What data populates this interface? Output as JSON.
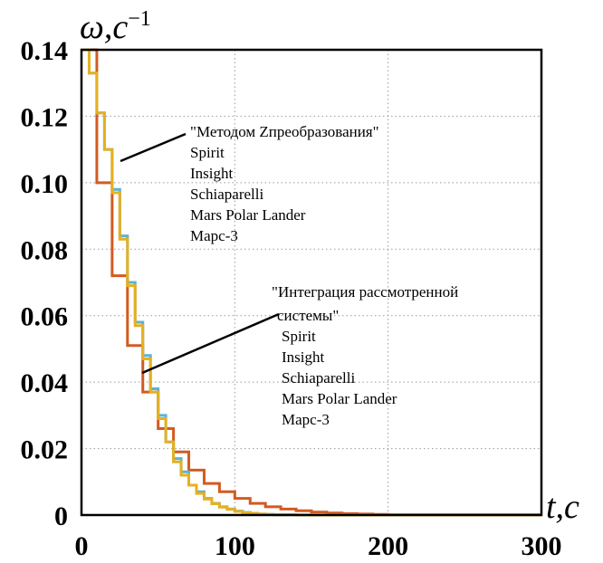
{
  "chart_data": {
    "type": "line",
    "step": true,
    "xlabel": "t,c",
    "ylabel": "ω,c⁻¹",
    "xlim": [
      0,
      300
    ],
    "ylim": [
      0,
      0.14
    ],
    "grid": true,
    "x_ticks": [
      "0",
      "100",
      "200",
      "300"
    ],
    "y_ticks": [
      "0",
      "0.02",
      "0.04",
      "0.06",
      "0.08",
      "0.10",
      "0.12",
      "0.14"
    ],
    "series": [
      {
        "color": "#d25b22",
        "x": [
          0,
          10,
          20,
          30,
          40,
          50,
          60,
          70,
          80,
          90,
          100,
          110,
          120,
          130,
          140,
          150,
          160,
          170,
          180,
          190,
          200,
          210,
          220,
          230,
          240,
          250,
          260,
          270,
          280,
          290,
          300
        ],
        "values": [
          0.14,
          0.1,
          0.072,
          0.051,
          0.037,
          0.026,
          0.019,
          0.0135,
          0.0095,
          0.007,
          0.005,
          0.0035,
          0.0025,
          0.0018,
          0.0013,
          0.0009,
          0.0006,
          0.0004,
          0.0003,
          0.0002,
          0.0001,
          0.0001,
          0.0001,
          0.0001,
          0.0001,
          0.0001,
          0.0001,
          0.0001,
          0.0001,
          0.0001,
          0.0001
        ]
      },
      {
        "color": "#5ab4d6",
        "x": [
          0,
          5,
          10,
          15,
          20,
          25,
          30,
          35,
          40,
          45,
          50,
          55,
          60,
          65,
          70,
          75,
          80,
          85,
          90,
          95,
          100,
          105,
          110,
          115,
          120,
          125,
          130,
          140,
          150,
          160,
          170,
          180,
          190,
          200,
          220,
          240,
          260,
          280,
          300
        ],
        "values": [
          0.14,
          0.133,
          0.121,
          0.11,
          0.098,
          0.084,
          0.07,
          0.058,
          0.048,
          0.038,
          0.03,
          0.022,
          0.017,
          0.013,
          0.009,
          0.007,
          0.005,
          0.0035,
          0.0025,
          0.0018,
          0.0012,
          0.0008,
          0.0005,
          0.0003,
          0.0002,
          0.0001,
          0.0001,
          5e-05,
          0,
          0,
          0,
          0,
          0,
          0,
          0,
          0,
          0,
          0,
          0
        ]
      },
      {
        "color": "#e6b020",
        "x": [
          0,
          5,
          10,
          15,
          20,
          25,
          30,
          35,
          40,
          45,
          50,
          55,
          60,
          65,
          70,
          75,
          80,
          85,
          90,
          95,
          100,
          105,
          110,
          115,
          120,
          125,
          130,
          140,
          150,
          160,
          170,
          180,
          190,
          200,
          220,
          240,
          260,
          280,
          300
        ],
        "values": [
          0.14,
          0.133,
          0.121,
          0.11,
          0.097,
          0.083,
          0.069,
          0.057,
          0.047,
          0.037,
          0.029,
          0.022,
          0.016,
          0.012,
          0.009,
          0.0065,
          0.0048,
          0.0034,
          0.0024,
          0.0017,
          0.0011,
          0.0007,
          0.0005,
          0.0003,
          0.0002,
          0.0001,
          0.0001,
          5e-05,
          0,
          0,
          0,
          0,
          0,
          0,
          0,
          0,
          0,
          0,
          0
        ]
      }
    ],
    "annotations": [
      {
        "lines": [
          "\"Методом Zпреобразования\"",
          "Spirit",
          "Insight",
          "Schiaparelli",
          "Mars Polar Lander",
          "Марс-3"
        ]
      },
      {
        "lines": [
          "\"Интеграция рассмотренной",
          "системы\"",
          "Spirit",
          "Insight",
          "Schiaparelli",
          "Mars Polar Lander",
          "Марс-3"
        ]
      }
    ]
  }
}
